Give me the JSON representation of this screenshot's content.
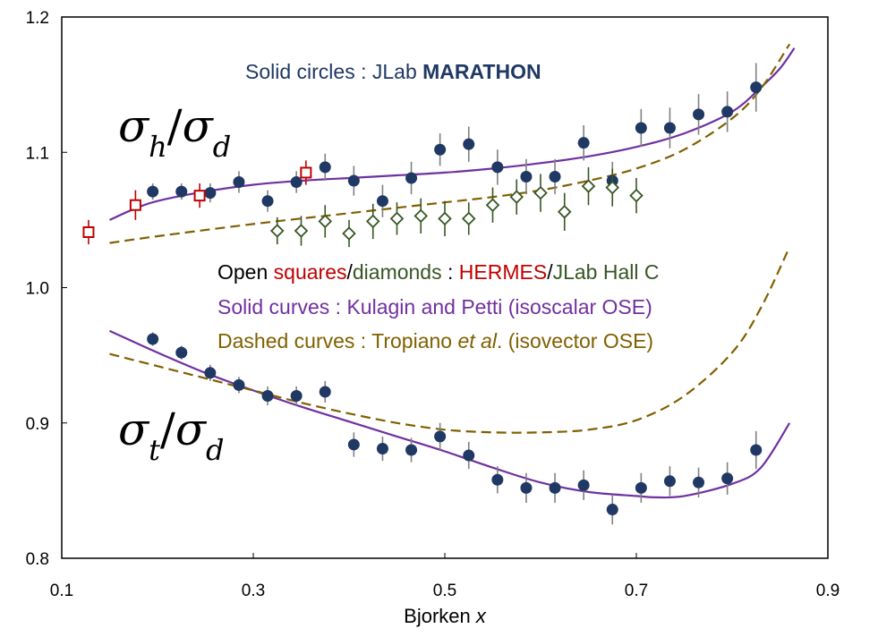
{
  "chart_data": {
    "type": "scatter",
    "title": "",
    "xlabel": "Bjorken x",
    "xlabel_parts": {
      "text": "Bjorken ",
      "var": "x"
    },
    "ylabel": "",
    "xlim": [
      0.1,
      0.9
    ],
    "ylim": [
      0.8,
      1.2
    ],
    "xticks": [
      0.1,
      0.3,
      0.5,
      0.7,
      0.9
    ],
    "xtick_labels": [
      "0.1",
      "0.3",
      "0.5",
      "0.7",
      "0.9"
    ],
    "yticks": [
      0.8,
      0.9,
      1.0,
      1.1,
      1.2
    ],
    "ytick_labels": [
      "0.8",
      "0.9",
      "1.0",
      "1.1",
      "1.2"
    ],
    "grid": false,
    "colors": {
      "marathon": "#1f3864",
      "hermes": "#c00000",
      "hallc": "#375623",
      "solid_curve": "#7030a0",
      "dashed_curve": "#806000",
      "errorbar": "#808080"
    },
    "labels": {
      "h_ratio": {
        "num": "σ",
        "num_sub": "h",
        "slash": "/",
        "den": "σ",
        "den_sub": "d"
      },
      "t_ratio": {
        "num": "σ",
        "num_sub": "t",
        "slash": "/",
        "den": "σ",
        "den_sub": "d"
      }
    },
    "annotations": {
      "line1": {
        "prefix": "Solid circles : JLab ",
        "bold": "MARATHON"
      },
      "line2": {
        "p1": "Open ",
        "p2": "squares",
        "p3": "/",
        "p4": "diamonds",
        "p5": " : ",
        "p6": "HERMES",
        "p7": "/",
        "p8": "JLab Hall C"
      },
      "line3": "Solid curves : Kulagin and Petti (isoscalar OSE)",
      "line4": {
        "p1": "Dashed curves : Tropiano ",
        "p2": "et al",
        "p3": ". (isovector OSE)"
      }
    },
    "series": [
      {
        "name": "JLab MARATHON σh/σd",
        "marker": "filled-circle",
        "color": "#1f3864",
        "x": [
          0.195,
          0.225,
          0.255,
          0.285,
          0.315,
          0.345,
          0.375,
          0.405,
          0.435,
          0.465,
          0.495,
          0.525,
          0.555,
          0.585,
          0.615,
          0.645,
          0.675,
          0.705,
          0.735,
          0.765,
          0.795,
          0.825
        ],
        "y": [
          1.071,
          1.071,
          1.07,
          1.078,
          1.064,
          1.078,
          1.089,
          1.079,
          1.064,
          1.081,
          1.102,
          1.106,
          1.089,
          1.082,
          1.082,
          1.107,
          1.079,
          1.118,
          1.118,
          1.128,
          1.13,
          1.148
        ],
        "err": [
          0.006,
          0.006,
          0.007,
          0.008,
          0.008,
          0.008,
          0.01,
          0.011,
          0.012,
          0.012,
          0.012,
          0.013,
          0.013,
          0.013,
          0.013,
          0.013,
          0.014,
          0.014,
          0.015,
          0.015,
          0.015,
          0.018
        ]
      },
      {
        "name": "HERMES σh/σd",
        "marker": "open-square",
        "color": "#c00000",
        "x": [
          0.128,
          0.177,
          0.244,
          0.355
        ],
        "y": [
          1.041,
          1.061,
          1.068,
          1.085
        ],
        "err": [
          0.009,
          0.011,
          0.009,
          0.009
        ]
      },
      {
        "name": "JLab Hall C σh/σd",
        "marker": "open-diamond",
        "color": "#375623",
        "x": [
          0.325,
          0.35,
          0.375,
          0.4,
          0.425,
          0.45,
          0.475,
          0.5,
          0.525,
          0.55,
          0.575,
          0.6,
          0.625,
          0.65,
          0.675,
          0.7
        ],
        "y": [
          1.042,
          1.042,
          1.049,
          1.04,
          1.049,
          1.051,
          1.053,
          1.051,
          1.051,
          1.061,
          1.067,
          1.07,
          1.056,
          1.075,
          1.074,
          1.068
        ],
        "err": [
          0.01,
          0.011,
          0.012,
          0.01,
          0.013,
          0.012,
          0.013,
          0.013,
          0.012,
          0.013,
          0.013,
          0.014,
          0.014,
          0.014,
          0.014,
          0.013
        ]
      },
      {
        "name": "JLab MARATHON σt/σd",
        "marker": "filled-circle",
        "color": "#1f3864",
        "x": [
          0.195,
          0.225,
          0.255,
          0.285,
          0.315,
          0.345,
          0.375,
          0.405,
          0.435,
          0.465,
          0.495,
          0.525,
          0.555,
          0.585,
          0.615,
          0.645,
          0.675,
          0.705,
          0.735,
          0.765,
          0.795,
          0.825
        ],
        "y": [
          0.962,
          0.952,
          0.937,
          0.928,
          0.92,
          0.92,
          0.923,
          0.884,
          0.881,
          0.88,
          0.89,
          0.876,
          0.858,
          0.852,
          0.852,
          0.854,
          0.836,
          0.852,
          0.857,
          0.856,
          0.859,
          0.88
        ],
        "err": [
          0.005,
          0.005,
          0.006,
          0.006,
          0.007,
          0.007,
          0.008,
          0.009,
          0.009,
          0.009,
          0.01,
          0.01,
          0.01,
          0.011,
          0.011,
          0.011,
          0.011,
          0.011,
          0.011,
          0.011,
          0.012,
          0.014
        ]
      }
    ],
    "curves": [
      {
        "name": "Kulagin and Petti σh/σd",
        "style": "solid",
        "color": "#7030a0",
        "x": [
          0.15,
          0.175,
          0.2,
          0.25,
          0.3,
          0.35,
          0.4,
          0.45,
          0.5,
          0.55,
          0.6,
          0.65,
          0.7,
          0.75,
          0.8,
          0.83,
          0.85,
          0.865
        ],
        "y": [
          1.05,
          1.058,
          1.064,
          1.071,
          1.076,
          1.079,
          1.081,
          1.083,
          1.085,
          1.088,
          1.092,
          1.097,
          1.104,
          1.114,
          1.13,
          1.148,
          1.162,
          1.177
        ]
      },
      {
        "name": "Tropiano et al. σh/σd",
        "style": "dashed",
        "color": "#806000",
        "x": [
          0.15,
          0.2,
          0.3,
          0.4,
          0.5,
          0.55,
          0.6,
          0.65,
          0.7,
          0.75,
          0.8,
          0.83,
          0.86
        ],
        "y": [
          1.033,
          1.038,
          1.047,
          1.055,
          1.063,
          1.067,
          1.072,
          1.079,
          1.088,
          1.102,
          1.125,
          1.147,
          1.18
        ]
      },
      {
        "name": "Kulagin and Petti σt/σd",
        "style": "solid",
        "color": "#7030a0",
        "x": [
          0.15,
          0.2,
          0.25,
          0.3,
          0.35,
          0.4,
          0.45,
          0.5,
          0.55,
          0.6,
          0.65,
          0.7,
          0.72,
          0.75,
          0.8,
          0.83,
          0.86
        ],
        "y": [
          0.968,
          0.952,
          0.937,
          0.924,
          0.912,
          0.901,
          0.89,
          0.879,
          0.867,
          0.856,
          0.849,
          0.846,
          0.845,
          0.846,
          0.855,
          0.867,
          0.9
        ]
      },
      {
        "name": "Tropiano et al. σt/σd",
        "style": "dashed",
        "color": "#806000",
        "x": [
          0.15,
          0.2,
          0.25,
          0.3,
          0.35,
          0.4,
          0.45,
          0.5,
          0.55,
          0.6,
          0.65,
          0.7,
          0.75,
          0.8,
          0.83,
          0.86
        ],
        "y": [
          0.951,
          0.942,
          0.933,
          0.924,
          0.915,
          0.907,
          0.9,
          0.895,
          0.893,
          0.893,
          0.895,
          0.902,
          0.92,
          0.952,
          0.985,
          1.03
        ]
      }
    ]
  }
}
